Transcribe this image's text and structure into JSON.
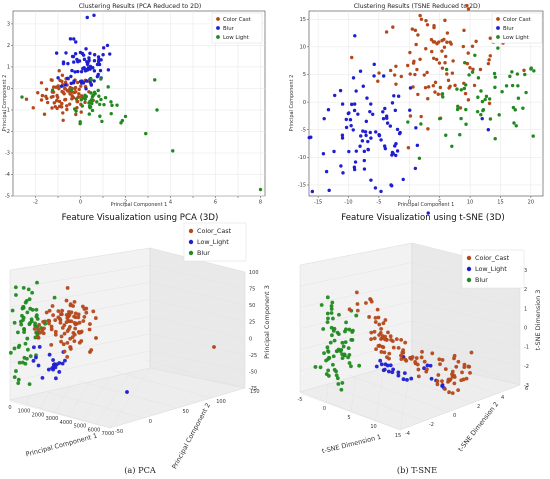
{
  "chart_data": [
    {
      "id": "pca2d",
      "type": "scatter",
      "title": "Clustering Results (PCA Reduced to 2D)",
      "xlabel": "Principal Component 1",
      "ylabel": "Principal Component 2",
      "xlim": [
        -3,
        8.2
      ],
      "ylim": [
        -5,
        3.6
      ],
      "xticks": [
        -2,
        -1,
        0,
        1,
        2,
        3,
        4,
        5,
        6,
        7,
        8
      ],
      "xtick_labels": [
        "-2",
        "",
        "0",
        "",
        "2",
        "",
        "4",
        "",
        "6",
        "",
        "8"
      ],
      "yticks": [
        -5,
        -4,
        -3,
        -2,
        -1,
        0,
        1,
        2,
        3
      ],
      "grid": true,
      "legend_position": "top-right",
      "series": [
        {
          "name": "Color Cast",
          "color": "#b5481b",
          "cluster": {
            "cx": -0.6,
            "cy": -0.3,
            "sx": 0.55,
            "sy": 0.45,
            "n": 90
          },
          "points": [
            [
              -1.9,
              -0.2
            ],
            [
              -2.4,
              -0.5
            ],
            [
              -1.6,
              -1.2
            ],
            [
              -1.3,
              0.4
            ],
            [
              -2.1,
              -0.9
            ]
          ]
        },
        {
          "name": "Blur",
          "color": "#1f1fd1",
          "cluster": {
            "cx": 0.2,
            "cy": 1.0,
            "sx": 0.55,
            "sy": 0.6,
            "n": 75
          },
          "points": [
            [
              0.6,
              3.4
            ],
            [
              0.3,
              3.3
            ],
            [
              -0.3,
              2.3
            ],
            [
              1.2,
              2.0
            ],
            [
              1.3,
              1.6
            ]
          ]
        },
        {
          "name": "Low Light",
          "color": "#208a20",
          "cluster": {
            "cx": 0.5,
            "cy": -0.6,
            "sx": 0.5,
            "sy": 0.45,
            "n": 45
          },
          "points": [
            [
              -2.6,
              -0.4
            ],
            [
              3.3,
              0.4
            ],
            [
              3.4,
              -1.0
            ],
            [
              2.9,
              -2.1
            ],
            [
              4.1,
              -2.9
            ],
            [
              8.0,
              -4.7
            ],
            [
              1.8,
              -1.6
            ],
            [
              2.0,
              -1.3
            ]
          ]
        }
      ]
    },
    {
      "id": "tsne2d",
      "type": "scatter",
      "title": "Clustering Results (TSNE Reduced to 2D)",
      "xlabel": "Principal Component 1",
      "ylabel": "Principal Component 2",
      "xlim": [
        -16.5,
        22
      ],
      "ylim": [
        -17,
        16.5
      ],
      "xticks": [
        -15,
        -10,
        -5,
        0,
        5,
        10,
        15,
        20
      ],
      "yticks": [
        -15,
        -10,
        -5,
        0,
        5,
        10,
        15
      ],
      "grid": true,
      "legend_position": "top-right",
      "series": [
        {
          "name": "Color Cast",
          "color": "#b5481b",
          "cluster": {
            "cx": 5,
            "cy": 7,
            "sx": 5,
            "sy": 4.5,
            "n": 95
          },
          "points": [
            [
              2,
              15
            ],
            [
              3,
              14
            ],
            [
              1,
              13
            ],
            [
              9,
              13
            ],
            [
              11,
              11
            ]
          ]
        },
        {
          "name": "Blur",
          "color": "#1f1fd1",
          "cluster": {
            "cx": -7,
            "cy": -6,
            "sx": 4.5,
            "sy": 5.5,
            "n": 95
          },
          "points": [
            [
              -14,
              -3
            ],
            [
              -3,
              -15
            ],
            [
              -1,
              -14
            ],
            [
              1,
              -12
            ],
            [
              12,
              -3
            ],
            [
              13,
              -5
            ]
          ]
        },
        {
          "name": "Low Light",
          "color": "#208a20",
          "cluster": {
            "cx": 13,
            "cy": 0,
            "sx": 5,
            "sy": 4,
            "n": 55
          },
          "points": [
            [
              19,
              5
            ],
            [
              20,
              6
            ],
            [
              17,
              3
            ],
            [
              6,
              -6
            ],
            [
              7,
              -8
            ],
            [
              5,
              -3
            ]
          ]
        }
      ]
    },
    {
      "id": "pca3d",
      "type": "scatter3d",
      "title": "Feature Visualization using PCA (3D)",
      "xlabel": "Principal Component 1",
      "ylabel": "Principal Component 2",
      "zlabel": "Principal Component 3",
      "xticks": [
        0,
        1000,
        2000,
        3000,
        4000,
        5000,
        6000,
        7000
      ],
      "yticks": [
        -50,
        0,
        50,
        100,
        150
      ],
      "zticks": [
        -75,
        -50,
        -25,
        0,
        25,
        50,
        75,
        100
      ],
      "legend_position": "top-right",
      "series": [
        {
          "name": "Color_Cast",
          "color": "#b5481b",
          "cluster": {
            "n": 95
          },
          "outliers": [
            [
              6500,
              40,
              -20
            ]
          ]
        },
        {
          "name": "Low_Light",
          "color": "#1f1fd1",
          "cluster": {
            "n": 22
          },
          "outliers": [
            [
              3800,
              60,
              -90
            ]
          ]
        },
        {
          "name": "Blur",
          "color": "#208a20",
          "cluster": {
            "n": 65
          },
          "outliers": []
        }
      ]
    },
    {
      "id": "tsne3d",
      "type": "scatter3d",
      "title": "Feature Visualization using t-SNE (3D)",
      "xlabel": "t-SNE Dimension 1",
      "ylabel": "t-SNE Dimension 2",
      "zlabel": "t-SNE Dimension 3",
      "xticks": [
        -5,
        0,
        5,
        10,
        15
      ],
      "yticks": [
        -4,
        -2,
        0,
        2,
        4,
        6
      ],
      "zticks": [
        -3,
        -2,
        -1,
        0,
        1,
        2,
        3
      ],
      "legend_position": "top-right",
      "series": [
        {
          "name": "Color_Cast",
          "color": "#b5481b",
          "cluster": {
            "n": 110
          }
        },
        {
          "name": "Low_Light",
          "color": "#1f1fd1",
          "cluster": {
            "n": 26
          }
        },
        {
          "name": "Blur",
          "color": "#208a20",
          "cluster": {
            "n": 70
          }
        }
      ]
    }
  ],
  "captions": {
    "left": "(a) PCA",
    "right": "(b) T-SNE"
  }
}
